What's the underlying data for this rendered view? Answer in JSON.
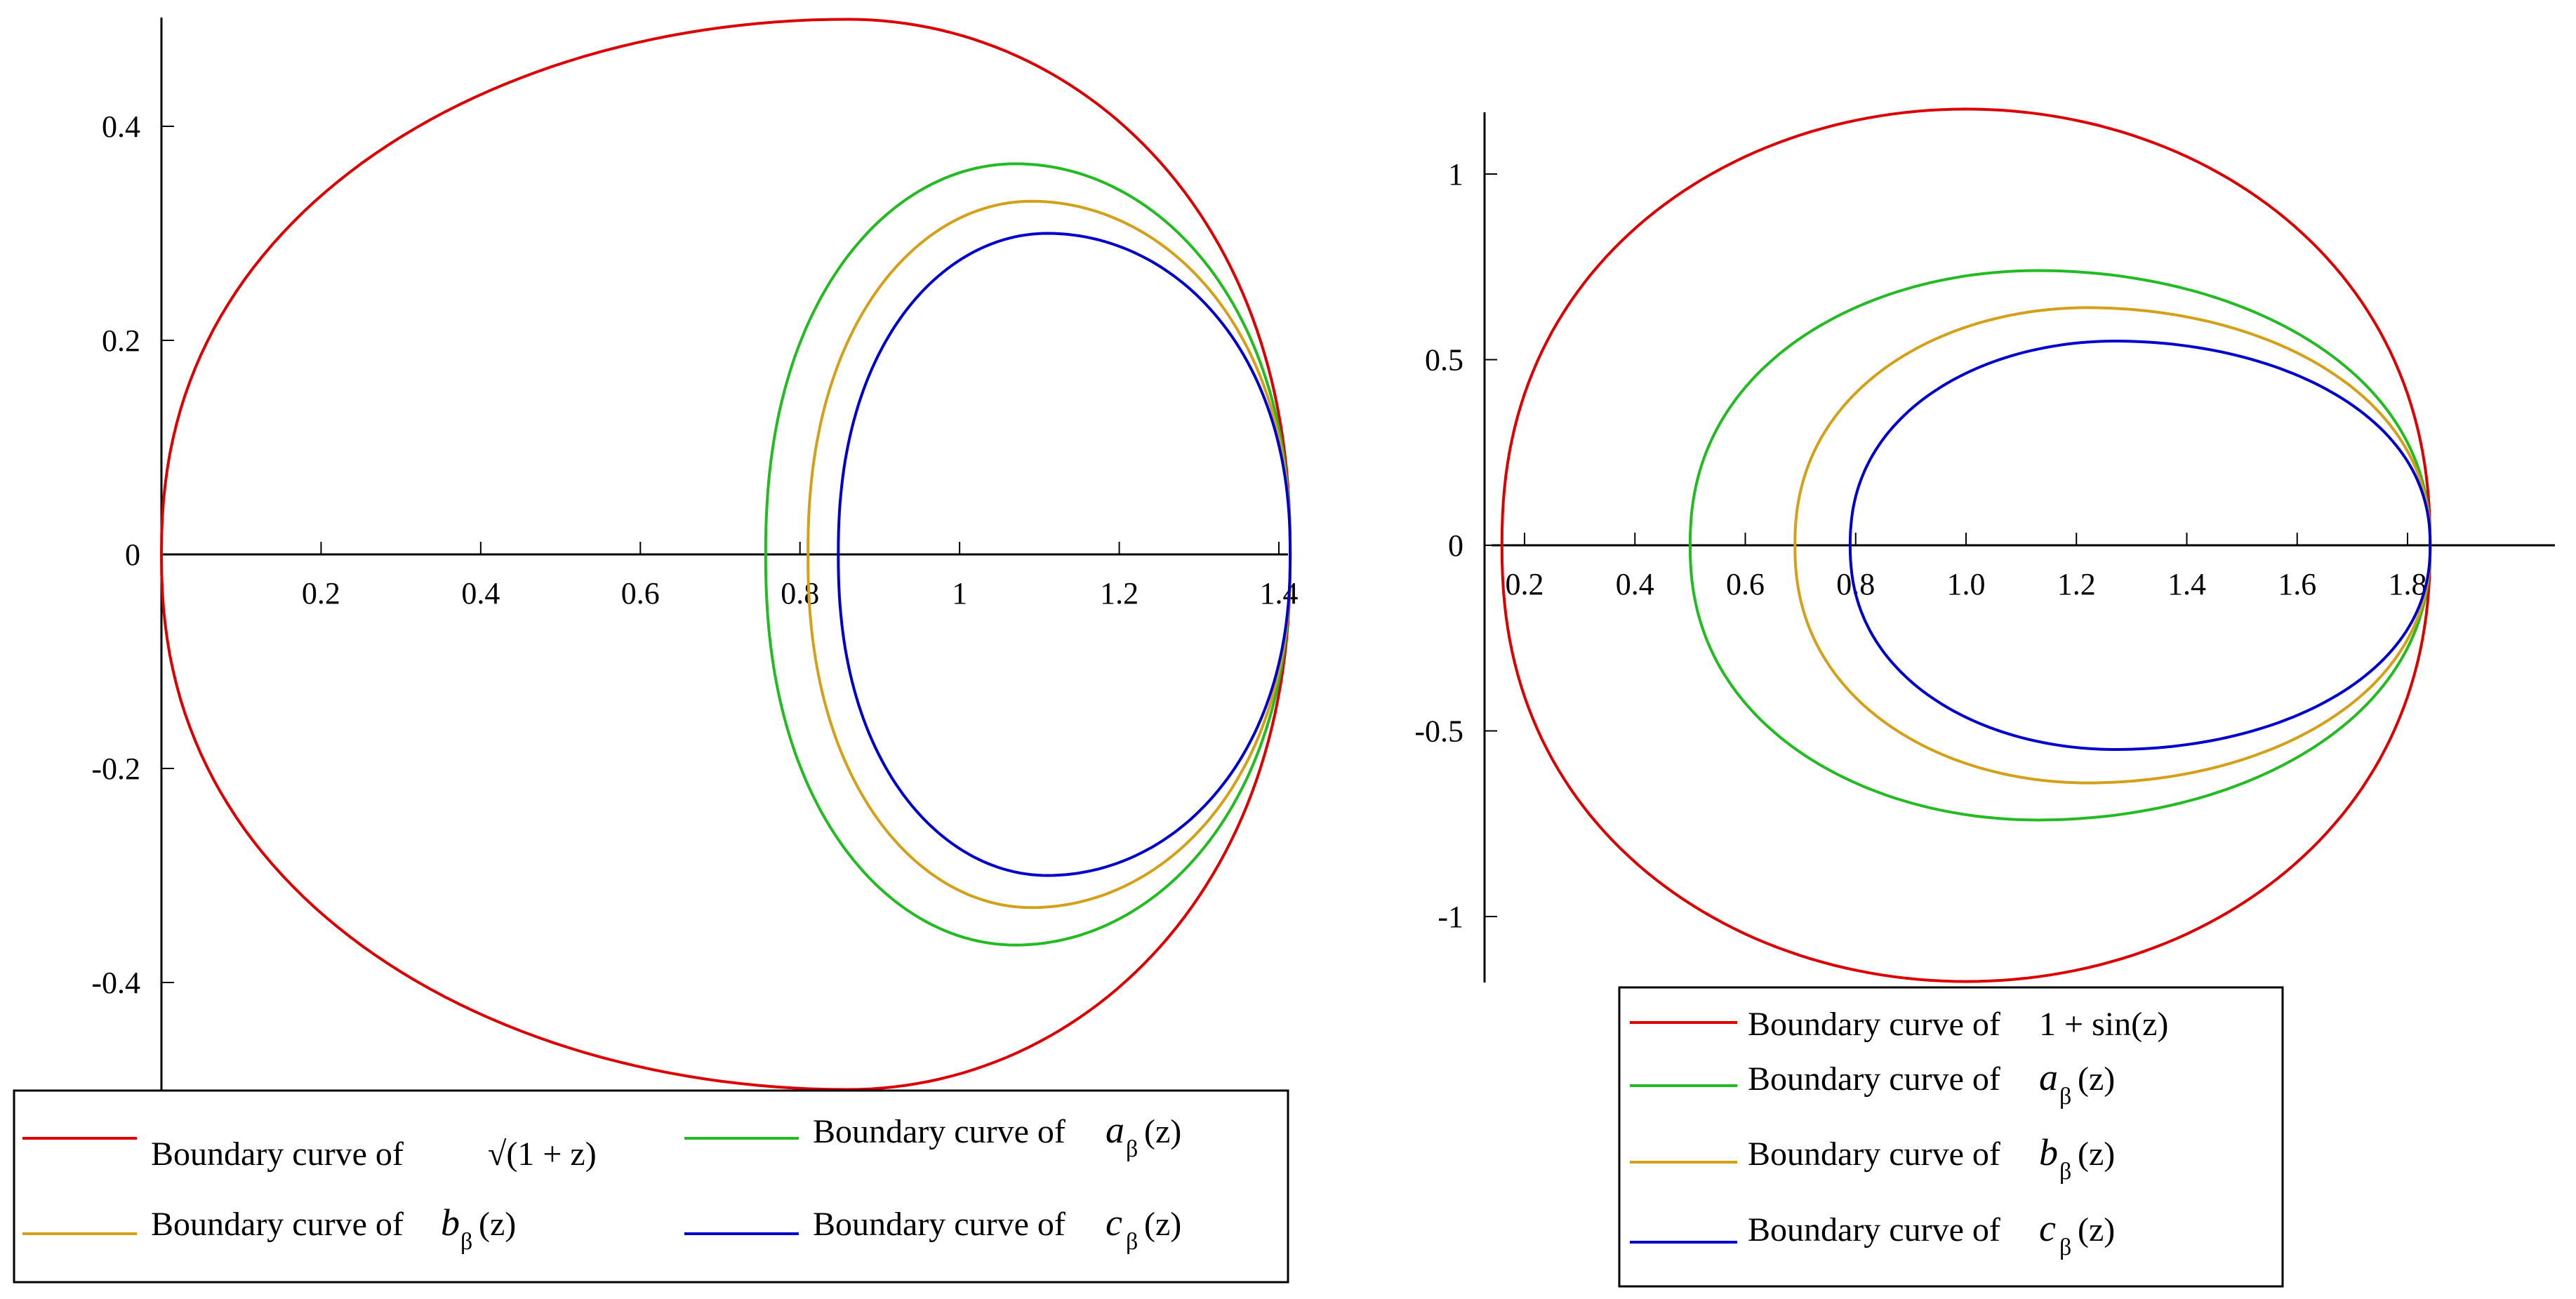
{
  "chart_data": [
    {
      "type": "line",
      "title": "",
      "xlabel": "",
      "ylabel": "",
      "xlim": [
        0,
        1.42
      ],
      "ylim": [
        -0.5,
        0.5
      ],
      "grid": false,
      "legend_position": "bottom",
      "x_ticks": [
        "0.2",
        "0.4",
        "0.6",
        "0.8",
        "1",
        "1.2",
        "1.4"
      ],
      "x_tick_values": [
        0.2,
        0.4,
        0.6,
        0.8,
        1.0,
        1.2,
        1.4
      ],
      "y_ticks": [
        "0.4",
        "0.2",
        "0",
        "-0.2",
        "-0.4"
      ],
      "y_tick_values": [
        0.4,
        0.2,
        0,
        -0.2,
        -0.4
      ],
      "series": [
        {
          "name": "Boundary curve of √(1 + z)",
          "legend_prefix": "Boundary curve of",
          "legend_math": "√(1 + z)",
          "color": "#dd0000",
          "curve": {
            "xmin": 0.0,
            "xmax": 1.4142,
            "xtop": 0.86,
            "ymax": 0.5
          }
        },
        {
          "name": "Boundary curve of aβ(z)",
          "legend_prefix": "Boundary curve of",
          "legend_math": "a",
          "legend_sub": "β",
          "legend_tail": "(z)",
          "color": "#22bb22",
          "curve": {
            "xmin": 0.757,
            "xmax": 1.4142,
            "xtop": 1.07,
            "ymax": 0.365
          }
        },
        {
          "name": "Boundary curve of bβ(z)",
          "legend_prefix": "Boundary curve of",
          "legend_math": "b",
          "legend_sub": "β",
          "legend_tail": "(z)",
          "color": "#d4a017",
          "curve": {
            "xmin": 0.81,
            "xmax": 1.4142,
            "xtop": 1.09,
            "ymax": 0.33
          }
        },
        {
          "name": "Boundary curve of cβ(z)",
          "legend_prefix": "Boundary curve of",
          "legend_math": "c",
          "legend_sub": "β",
          "legend_tail": "(z)",
          "color": "#0000cc",
          "curve": {
            "xmin": 0.848,
            "xmax": 1.4142,
            "xtop": 1.11,
            "ymax": 0.3
          }
        }
      ]
    },
    {
      "type": "line",
      "title": "",
      "xlabel": "",
      "ylabel": "",
      "xlim": [
        0.15,
        1.85
      ],
      "ylim": [
        -1.17,
        1.17
      ],
      "grid": false,
      "legend_position": "bottom",
      "x_ticks": [
        "0.2",
        "0.4",
        "0.6",
        "0.8",
        "1.0",
        "1.2",
        "1.4",
        "1.6",
        "1.8"
      ],
      "x_tick_values": [
        0.2,
        0.4,
        0.6,
        0.8,
        1.0,
        1.2,
        1.4,
        1.6,
        1.8
      ],
      "y_ticks": [
        "1",
        "0.5",
        "0",
        "-0.5",
        "-1"
      ],
      "y_tick_values": [
        1,
        0.5,
        0,
        -0.5,
        -1
      ],
      "series": [
        {
          "name": "Boundary curve of 1 + sin(z)",
          "legend_prefix": "Boundary curve of",
          "legend_math": "1 + sin(z)",
          "color": "#dd0000",
          "curve": {
            "xmin": 0.159,
            "xmax": 1.841,
            "xtop": 1.0,
            "ymax": 1.175
          }
        },
        {
          "name": "Boundary curve of aβ(z)",
          "legend_prefix": "Boundary curve of",
          "legend_math": "a",
          "legend_sub": "β",
          "legend_tail": "(z)",
          "color": "#22bb22",
          "curve": {
            "xmin": 0.5,
            "xmax": 1.841,
            "xtop": 1.13,
            "ymax": 0.74
          }
        },
        {
          "name": "Boundary curve of bβ(z)",
          "legend_prefix": "Boundary curve of",
          "legend_math": "b",
          "legend_sub": "β",
          "legend_tail": "(z)",
          "color": "#d4a017",
          "curve": {
            "xmin": 0.69,
            "xmax": 1.841,
            "xtop": 1.22,
            "ymax": 0.64
          }
        },
        {
          "name": "Boundary curve of cβ(z)",
          "legend_prefix": "Boundary curve of",
          "legend_math": "c",
          "legend_sub": "β",
          "legend_tail": "(z)",
          "color": "#0000cc",
          "curve": {
            "xmin": 0.79,
            "xmax": 1.841,
            "xtop": 1.27,
            "ymax": 0.55
          }
        }
      ]
    }
  ]
}
